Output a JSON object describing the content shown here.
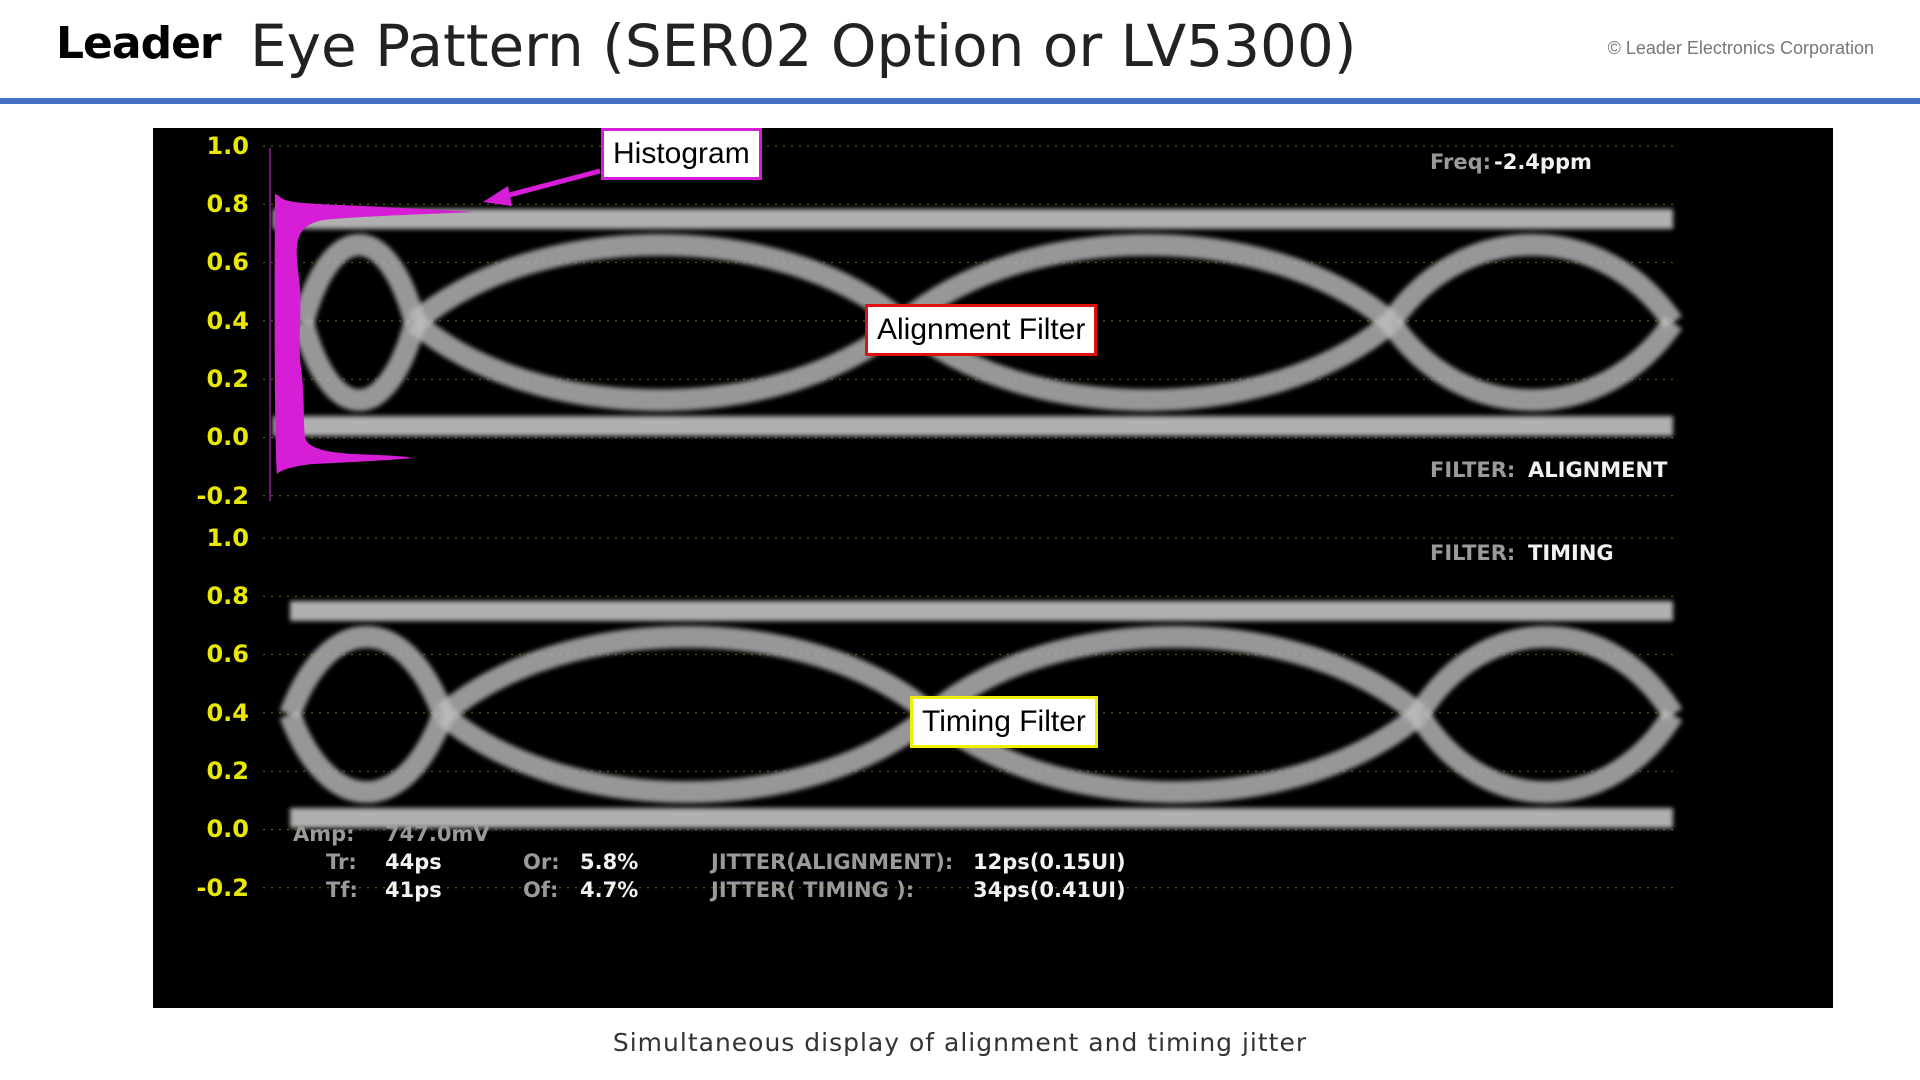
{
  "header": {
    "logo": "Leader",
    "title": "Eye Pattern (SER02 Option or LV5300)",
    "copyright": "© Leader Electronics Corporation"
  },
  "caption": "Simultaneous display of alignment and timing jitter",
  "callouts": {
    "histogram": "Histogram",
    "alignment": "Alignment Filter",
    "timing": "Timing Filter"
  },
  "colors": {
    "accent_rule": "#4472c4",
    "histogram": "#d61ed6",
    "alignment_border": "#e01010",
    "timing_border": "#f0f000",
    "scale_text": "#e8e800"
  },
  "scope": {
    "y_scale": [
      "1.0",
      "0.8",
      "0.6",
      "0.4",
      "0.2",
      "0.0",
      "-0.2"
    ],
    "freq_label": "Freq:",
    "freq_value": "-2.4ppm",
    "filter_label": "FILTER:",
    "filter_top": "ALIGNMENT",
    "filter_bottom": "TIMING",
    "amplitude_label": "Amp:",
    "amplitude_value": "747.0mV",
    "tr_label": "Tr:",
    "tr_value": "44ps",
    "tf_label": "Tf:",
    "tf_value": "41ps",
    "or_label": "Or:",
    "or_value": "5.8%",
    "of_label": "Of:",
    "of_value": "4.7%",
    "jitter_alignment_label": "JITTER(ALIGNMENT):",
    "jitter_alignment_value": "12ps(0.15UI)",
    "jitter_timing_label": "JITTER(  TIMING  ):",
    "jitter_timing_value": "34ps(0.41UI)"
  }
}
